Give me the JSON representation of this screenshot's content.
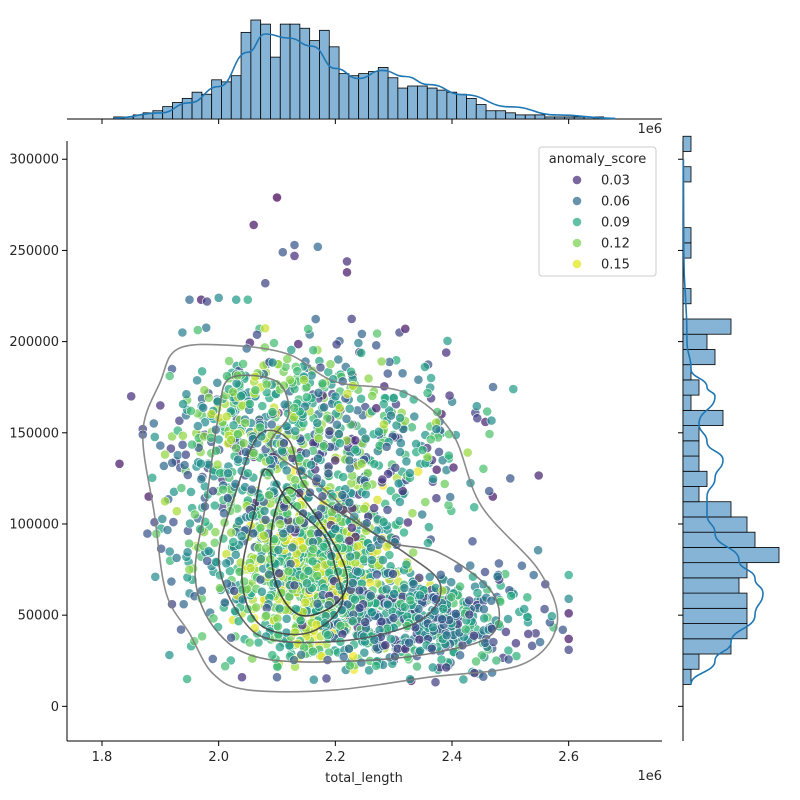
{
  "chart_data": {
    "type": "scatter",
    "subtype": "jointplot",
    "xlabel": "total_length",
    "ylabel": "",
    "x_offset_label": "1e6",
    "top_offset_label": "1e6",
    "xlim": [
      1.74,
      2.76
    ],
    "ylim": [
      -19000,
      310000
    ],
    "x_ticks": [
      1.8,
      2.0,
      2.2,
      2.4,
      2.6
    ],
    "x_tick_labels": [
      "1.8",
      "2.0",
      "2.2",
      "2.4",
      "2.6"
    ],
    "y_ticks": [
      0,
      50000,
      100000,
      150000,
      200000,
      250000,
      300000
    ],
    "y_tick_labels": [
      "0",
      "50000",
      "100000",
      "150000",
      "200000",
      "250000",
      "300000"
    ],
    "legend": {
      "title": "anomaly_score",
      "placement": "upper right",
      "entries": [
        {
          "label": "0.03",
          "value": 0.03,
          "color": "#472c7a"
        },
        {
          "label": "0.06",
          "value": 0.06,
          "color": "#31688e"
        },
        {
          "label": "0.09",
          "value": 0.09,
          "color": "#26a884"
        },
        {
          "label": "0.12",
          "value": 0.12,
          "color": "#7ad151"
        },
        {
          "label": "0.15",
          "value": 0.15,
          "color": "#e2e418"
        }
      ]
    },
    "colormap": "viridis",
    "hue_range": [
      0.01,
      0.16
    ],
    "point_color_stops": [
      "#440154",
      "#472c7a",
      "#3b518b",
      "#2c718e",
      "#21908d",
      "#27ad81",
      "#5cc863",
      "#aadc32",
      "#fde725"
    ],
    "scatter_points": [
      [
        1.83,
        133000,
        0.02
      ],
      [
        1.85,
        170000,
        0.03
      ],
      [
        1.87,
        152000,
        0.04
      ],
      [
        1.87,
        149000,
        0.05
      ],
      [
        1.88,
        115000,
        0.02
      ],
      [
        1.89,
        101000,
        0.04
      ],
      [
        1.9,
        165000,
        0.03
      ],
      [
        1.9,
        143000,
        0.06
      ],
      [
        1.92,
        185000,
        0.05
      ],
      [
        1.95,
        223000,
        0.06
      ],
      [
        1.97,
        223000,
        0.02
      ],
      [
        1.98,
        222000,
        0.04
      ],
      [
        2.0,
        224000,
        0.08
      ],
      [
        2.03,
        223000,
        0.09
      ],
      [
        2.05,
        223000,
        0.1
      ],
      [
        2.06,
        264000,
        0.02
      ],
      [
        2.08,
        232000,
        0.04
      ],
      [
        2.07,
        207000,
        0.11
      ],
      [
        2.1,
        279000,
        0.01
      ],
      [
        2.11,
        249000,
        0.05
      ],
      [
        2.13,
        247000,
        0.03
      ],
      [
        2.13,
        253000,
        0.05
      ],
      [
        2.17,
        252000,
        0.06
      ],
      [
        2.22,
        244000,
        0.03
      ],
      [
        2.22,
        238000,
        0.02
      ],
      [
        2.27,
        198000,
        0.05
      ],
      [
        2.31,
        205000,
        0.04
      ],
      [
        2.32,
        207000,
        0.02
      ],
      [
        2.39,
        194000,
        0.03
      ],
      [
        2.44,
        161000,
        0.04
      ],
      [
        2.47,
        115000,
        0.02
      ],
      [
        2.5,
        125000,
        0.05
      ],
      [
        2.54,
        72000,
        0.06
      ],
      [
        2.56,
        67000,
        0.04
      ],
      [
        2.6,
        72000,
        0.1
      ],
      [
        2.6,
        59000,
        0.08
      ],
      [
        2.6,
        51000,
        0.02
      ],
      [
        2.6,
        37000,
        0.02
      ],
      [
        2.6,
        31000,
        0.04
      ],
      [
        2.59,
        42000,
        0.05
      ],
      [
        2.33,
        14000,
        0.01
      ],
      [
        2.1,
        16000,
        0.05
      ],
      [
        2.04,
        16000,
        0.03
      ],
      [
        1.99,
        26000,
        0.05
      ],
      [
        1.92,
        56000,
        0.04
      ],
      [
        1.94,
        56000,
        0.06
      ],
      [
        1.95,
        62000,
        0.08
      ],
      [
        2.08,
        110000,
        0.14
      ],
      [
        2.1,
        105000,
        0.15
      ],
      [
        2.13,
        100000,
        0.14
      ],
      [
        2.12,
        90000,
        0.15
      ],
      [
        2.15,
        85000,
        0.13
      ],
      [
        2.18,
        80000,
        0.14
      ],
      [
        2.2,
        74000,
        0.12
      ],
      [
        2.22,
        68000,
        0.13
      ],
      [
        2.24,
        63000,
        0.14
      ],
      [
        2.16,
        70000,
        0.15
      ],
      [
        2.14,
        60000,
        0.12
      ],
      [
        2.09,
        75000,
        0.13
      ],
      [
        2.25,
        55000,
        0.11
      ],
      [
        2.3,
        60000,
        0.1
      ],
      [
        2.35,
        50000,
        0.09
      ],
      [
        2.4,
        45000,
        0.08
      ],
      [
        2.45,
        40000,
        0.07
      ],
      [
        2.42,
        55000,
        0.09
      ],
      [
        2.38,
        30000,
        0.06
      ],
      [
        2.3,
        25000,
        0.05
      ],
      [
        2.25,
        35000,
        0.08
      ],
      [
        2.15,
        40000,
        0.09
      ],
      [
        2.08,
        45000,
        0.1
      ]
    ],
    "kde_levels": [
      {
        "level": 1,
        "color": "#808080",
        "points": [
          [
            1.93,
            196000
          ],
          [
            2.02,
            198000
          ],
          [
            2.12,
            193000
          ],
          [
            2.2,
            178000
          ],
          [
            2.32,
            172000
          ],
          [
            2.4,
            150000
          ],
          [
            2.45,
            110000
          ],
          [
            2.55,
            74000
          ],
          [
            2.58,
            45000
          ],
          [
            2.52,
            23000
          ],
          [
            2.36,
            16000
          ],
          [
            2.2,
            9000
          ],
          [
            2.05,
            9000
          ],
          [
            1.99,
            18000
          ],
          [
            1.95,
            40000
          ],
          [
            1.91,
            62000
          ],
          [
            1.89,
            105000
          ],
          [
            1.87,
            150000
          ],
          [
            1.9,
            178000
          ],
          [
            1.93,
            196000
          ]
        ]
      },
      {
        "level": 2,
        "color": "#6f6f6f",
        "points": [
          [
            2.02,
            180000
          ],
          [
            2.1,
            178000
          ],
          [
            2.12,
            160000
          ],
          [
            2.09,
            142000
          ],
          [
            2.17,
            122000
          ],
          [
            2.28,
            92000
          ],
          [
            2.38,
            84000
          ],
          [
            2.47,
            62000
          ],
          [
            2.47,
            40000
          ],
          [
            2.38,
            30000
          ],
          [
            2.24,
            25000
          ],
          [
            2.08,
            26000
          ],
          [
            2.0,
            40000
          ],
          [
            1.96,
            70000
          ],
          [
            1.98,
            115000
          ],
          [
            2.0,
            160000
          ],
          [
            2.02,
            180000
          ]
        ]
      },
      {
        "level": 3,
        "color": "#555555",
        "points": [
          [
            2.07,
            149000
          ],
          [
            2.12,
            146000
          ],
          [
            2.15,
            120000
          ],
          [
            2.24,
            100000
          ],
          [
            2.32,
            84000
          ],
          [
            2.38,
            67000
          ],
          [
            2.35,
            48000
          ],
          [
            2.24,
            37000
          ],
          [
            2.1,
            36000
          ],
          [
            2.04,
            48000
          ],
          [
            2.0,
            80000
          ],
          [
            2.03,
            118000
          ],
          [
            2.07,
            149000
          ]
        ]
      },
      {
        "level": 4,
        "color": "#444444",
        "points": [
          [
            2.08,
            130000
          ],
          [
            2.12,
            112000
          ],
          [
            2.18,
            94000
          ],
          [
            2.2,
            76000
          ],
          [
            2.21,
            55000
          ],
          [
            2.15,
            40000
          ],
          [
            2.07,
            45000
          ],
          [
            2.04,
            70000
          ],
          [
            2.06,
            105000
          ],
          [
            2.08,
            130000
          ]
        ]
      },
      {
        "level": 5,
        "color": "#333333",
        "points": [
          [
            2.12,
            120000
          ],
          [
            2.18,
            98000
          ],
          [
            2.22,
            72000
          ],
          [
            2.2,
            56000
          ],
          [
            2.14,
            50000
          ],
          [
            2.1,
            66000
          ],
          [
            2.09,
            95000
          ],
          [
            2.12,
            120000
          ]
        ]
      }
    ],
    "top_histogram": {
      "bin_edges_start": 1.82,
      "bin_width": 0.0168,
      "counts": [
        1,
        1,
        2,
        3,
        4,
        6,
        8,
        10,
        13,
        12,
        19,
        18,
        21,
        42,
        48,
        46,
        30,
        46,
        46,
        44,
        38,
        43,
        35,
        22,
        21,
        22,
        23,
        25,
        20,
        15,
        16,
        16,
        15,
        14,
        13,
        12,
        10,
        7,
        4,
        4,
        3,
        2,
        2,
        2,
        1,
        1,
        1,
        1,
        1,
        1
      ]
    },
    "top_kde": {
      "x": [
        1.82,
        1.9,
        1.95,
        2.0,
        2.05,
        2.08,
        2.12,
        2.16,
        2.2,
        2.24,
        2.28,
        2.32,
        2.36,
        2.42,
        2.5,
        2.58,
        2.68
      ],
      "y": [
        0.5,
        3,
        8,
        16,
        33,
        42,
        40,
        36,
        25,
        20,
        24,
        21,
        17,
        12,
        6,
        2,
        0.3
      ]
    },
    "right_histogram": {
      "bin_edges_start": 12000,
      "bin_width": 8350,
      "counts": [
        1,
        2,
        6,
        8,
        8,
        8,
        7,
        8,
        12,
        9,
        8,
        6,
        2,
        3,
        2,
        2,
        2,
        5,
        1,
        2,
        1,
        4,
        3,
        6,
        0,
        1,
        0,
        0,
        1,
        1,
        0,
        0,
        0,
        1,
        0,
        1
      ]
    },
    "right_kde": {
      "y": [
        12000,
        25000,
        35000,
        50000,
        62000,
        70000,
        80000,
        95000,
        105000,
        115000,
        125000,
        135000,
        145000,
        155000,
        170000,
        175000,
        185000,
        200000,
        250000,
        300000
      ],
      "x": [
        1,
        4,
        6,
        9,
        10,
        9,
        7,
        4,
        3,
        3,
        4,
        5,
        3,
        2,
        4,
        3,
        1,
        0.5,
        0.1,
        0.05
      ]
    },
    "colors": {
      "hist_fill": "#86b4d7",
      "hist_stroke": "#000000",
      "kde_line": "#1f77b4",
      "contour_line": "#808080"
    }
  }
}
